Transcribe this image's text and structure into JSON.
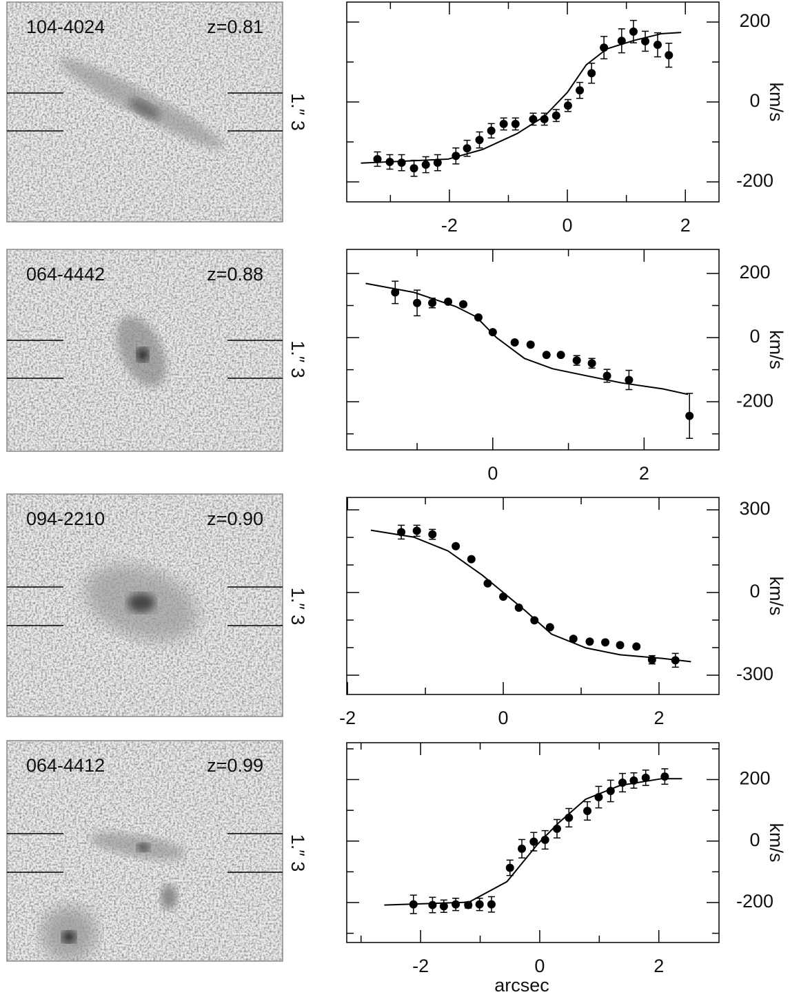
{
  "chart_data": [
    {
      "type": "scatter",
      "xlim": [
        -3.74,
        2.57
      ],
      "xticks": [
        -2,
        0,
        2
      ],
      "xminorticks": [
        -3,
        -1,
        1
      ],
      "ylim": [
        -250,
        250
      ],
      "yticks": [
        -200,
        0,
        200
      ],
      "yminorticks": [
        -100,
        100
      ],
      "ylabel": "km/s",
      "series": [
        {
          "style": "line",
          "color": "#000000",
          "x": [
            -3.5,
            -2.02,
            -1.44,
            -0.85,
            -0.39,
            0,
            0.32,
            0.67,
            1.13,
            1.6,
            1.93
          ],
          "values": [
            -153,
            -143,
            -119,
            -79,
            -36,
            24,
            93,
            133,
            154,
            171,
            174
          ]
        },
        {
          "style": "points",
          "color": "#000000",
          "x": [
            -3.22,
            -3.01,
            -2.81,
            -2.6,
            -2.4,
            -2.2,
            -1.89,
            -1.7,
            -1.49,
            -1.29,
            -1.08,
            -0.88,
            -0.58,
            -0.39,
            -0.19,
            0.01,
            0.21,
            0.41,
            0.62,
            0.92,
            1.12,
            1.32,
            1.53,
            1.72
          ],
          "values": [
            -143,
            -150,
            -152,
            -166,
            -157,
            -152,
            -135,
            -116,
            -95,
            -72,
            -55,
            -55,
            -43,
            -43,
            -34,
            -9,
            29,
            72,
            136,
            153,
            176,
            152,
            143,
            117
          ],
          "errors": [
            18,
            18,
            20,
            20,
            20,
            20,
            20,
            20,
            20,
            18,
            15,
            15,
            15,
            15,
            15,
            15,
            20,
            25,
            28,
            30,
            28,
            25,
            30,
            30
          ]
        }
      ]
    },
    {
      "type": "scatter",
      "xlim": [
        -1.93,
        2.99
      ],
      "xticks": [
        0,
        2
      ],
      "xminorticks": [
        -1,
        1
      ],
      "ylim": [
        -350,
        275
      ],
      "yticks": [
        -200,
        0,
        200
      ],
      "yminorticks": [
        -300,
        -100,
        100
      ],
      "ylabel": "km/s",
      "series": [
        {
          "style": "line",
          "color": "#000000",
          "x": [
            -1.68,
            -1.04,
            -0.49,
            -0.22,
            0.05,
            0.42,
            0.79,
            1.24,
            1.7,
            2.25,
            2.58
          ],
          "values": [
            169,
            141,
            97,
            65,
            0,
            -65,
            -97,
            -119,
            -141,
            -160,
            -177
          ]
        },
        {
          "style": "points",
          "color": "#000000",
          "x": [
            -1.29,
            -1,
            -0.8,
            -0.59,
            -0.39,
            -0.19,
            0,
            0.29,
            0.5,
            0.71,
            0.9,
            1.11,
            1.31,
            1.51,
            1.8,
            2.6
          ],
          "values": [
            141,
            108,
            108,
            112,
            104,
            63,
            17,
            -15,
            -22,
            -54,
            -54,
            -71,
            -80,
            -119,
            -132,
            -244
          ],
          "errors": [
            35,
            40,
            15,
            0,
            0,
            0,
            0,
            0,
            0,
            0,
            0,
            15,
            15,
            20,
            30,
            70
          ]
        }
      ]
    },
    {
      "type": "scatter",
      "xlim": [
        -2.01,
        2.77
      ],
      "xticks": [
        -2,
        0,
        2
      ],
      "xminorticks": [
        -1,
        1
      ],
      "ylim": [
        -370,
        345
      ],
      "yticks": [
        -300,
        0,
        300
      ],
      "yminorticks": [
        -200,
        -100,
        100,
        200
      ],
      "ylabel": "km/s",
      "series": [
        {
          "style": "line",
          "color": "#000000",
          "x": [
            -1.7,
            -1.15,
            -0.71,
            -0.27,
            0,
            0.27,
            0.62,
            1.06,
            1.5,
            2.04,
            2.41
          ],
          "values": [
            226,
            201,
            151,
            63,
            0,
            -63,
            -151,
            -201,
            -226,
            -239,
            -251
          ]
        },
        {
          "style": "points",
          "color": "#000000",
          "x": [
            -1.31,
            -1.11,
            -0.91,
            -0.61,
            -0.41,
            -0.2,
            0,
            0.2,
            0.4,
            0.6,
            0.9,
            1.11,
            1.31,
            1.5,
            1.71,
            1.91,
            2.21
          ],
          "values": [
            219,
            224,
            211,
            168,
            121,
            33,
            -15,
            -55,
            -101,
            -126,
            -168,
            -178,
            -181,
            -191,
            -196,
            -244,
            -246
          ],
          "errors": [
            25,
            20,
            18,
            0,
            0,
            0,
            0,
            0,
            0,
            0,
            0,
            0,
            0,
            0,
            0,
            15,
            25
          ]
        }
      ]
    },
    {
      "type": "scatter",
      "xlim": [
        -3.24,
        3.01
      ],
      "xticks": [
        -2,
        0,
        2
      ],
      "xminorticks": [
        -3,
        -1,
        1
      ],
      "ylim": [
        -330,
        320
      ],
      "yticks": [
        -200,
        0,
        200
      ],
      "yminorticks": [
        -300,
        -100,
        100,
        300
      ],
      "ylabel": "km/s",
      "xlabel": "arcsec",
      "series": [
        {
          "style": "line",
          "color": "#000000",
          "x": [
            -2.61,
            -1.19,
            -0.55,
            -0.03,
            0.31,
            0.77,
            1.35,
            2.05,
            2.39
          ],
          "values": [
            -208,
            -199,
            -132,
            -9,
            58,
            136,
            181,
            203,
            203
          ]
        },
        {
          "style": "points",
          "color": "#000000",
          "x": [
            -2.12,
            -1.8,
            -1.61,
            -1.41,
            -1.2,
            -1.01,
            -0.81,
            -0.5,
            -0.3,
            -0.1,
            0.09,
            0.29,
            0.49,
            0.8,
            0.99,
            1.19,
            1.39,
            1.58,
            1.78,
            2.1
          ],
          "values": [
            -206,
            -208,
            -212,
            -206,
            -208,
            -206,
            -206,
            -87,
            -25,
            -2,
            4,
            40,
            76,
            98,
            143,
            163,
            190,
            197,
            206,
            210
          ],
          "errors": [
            30,
            25,
            20,
            20,
            10,
            20,
            25,
            25,
            30,
            30,
            30,
            30,
            30,
            30,
            35,
            35,
            30,
            25,
            25,
            25
          ]
        }
      ]
    }
  ],
  "images": [
    {
      "id": "104-4024",
      "redshift": "z=0.81",
      "scale": "1.″ 3"
    },
    {
      "id": "064-4442",
      "redshift": "z=0.88",
      "scale": "1.″ 3"
    },
    {
      "id": "094-2210",
      "redshift": "z=0.90",
      "scale": "1.″ 3"
    },
    {
      "id": "064-4412",
      "redshift": "z=0.99",
      "scale": "1.″ 3"
    }
  ]
}
